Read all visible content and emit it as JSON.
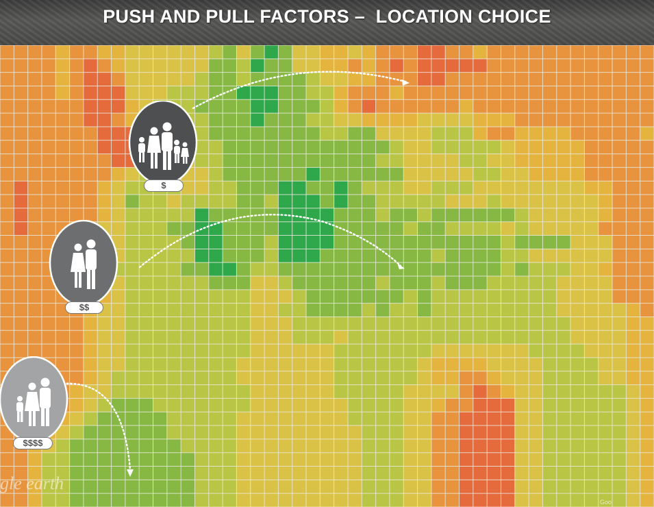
{
  "title": "PUSH AND PULL FACTORS –  LOCATION CHOICE",
  "watermark": "gle earth",
  "corner_label": "Goo",
  "grid": {
    "color_scale": [
      "#d84a3c",
      "#e56a3c",
      "#e8943f",
      "#e5b43f",
      "#d9c245",
      "#b9c544",
      "#86b843",
      "#2fa84b"
    ],
    "line_color": "#e9e9e0",
    "cells": [
      "22223223344444456467644334322211223222222222222",
      "22223212344444466576644332321211111222222222222",
      "22223211244444566566665443322211222222222222222",
      "22223211144455566777665532223222222222222222222",
      "22222211134555666677666532122222232222222222222",
      "22222211234545566676665544333344443332222222222",
      "22222221113444566666666556644445553223333222223",
      "22222221114444556666666666665445555543333322222",
      "22222222114444556666666666655444455443333322222",
      "22222222345544456666667666666444445544333322222",
      "21222223455554455666776676555445554444444433222",
      "21222223465545555665777676655555444544444443222",
      "21222223455555766666777766656656666665444443222",
      "21222224455566776666777766666566555545444442222",
      "22222224455556776665777766666666666656666444222",
      "22222224455555776665777666666665666655444444222",
      "22222224555556677655666666666666666656555443222",
      "22222224455555566644566666656665666555554444222",
      "22222233455555555544456666666565555555554444222",
      "22222234455555555544556666565565555555554444432",
      "22222234455555555544455555555555555555555444433",
      "22222234455555555544455545555555555555555444433",
      "22222234455555555544444455555554444444555544433",
      "22222234455555555444444455555543333444455554433",
      "22222234555555555444444455555543322344455554433",
      "22222344555555555544444455555444421234455555543",
      "22222345666555555544444445555443221114455555543",
      "22223456666655555444444445555442211114455555543",
      "22234566666655555444444444555442211114455555543",
      "22345666666665555444444444555442211114455555543",
      "22355666666666555444444444555442211114455555543",
      "22355666666666555444444444555442211114455555543",
      "22355666666666555444444444555442211114455555543",
      "22355666666666555444444444555442211114455555543"
    ]
  },
  "profiles": [
    {
      "name": "family",
      "members": 5,
      "price_label": "$",
      "icon": "family-icon",
      "bubble_color": "#4e4f50"
    },
    {
      "name": "couple",
      "members": 2,
      "price_label": "$$",
      "icon": "couple-icon",
      "bubble_color": "#6d6e70"
    },
    {
      "name": "small-family",
      "members": 3,
      "price_label": "$$$$",
      "icon": "small-family-icon",
      "bubble_color": "#a3a4a6"
    }
  ],
  "arrows": [
    {
      "from": "family",
      "direction": "right"
    },
    {
      "from": "couple",
      "direction": "right"
    },
    {
      "from": "small-family",
      "direction": "down"
    }
  ]
}
